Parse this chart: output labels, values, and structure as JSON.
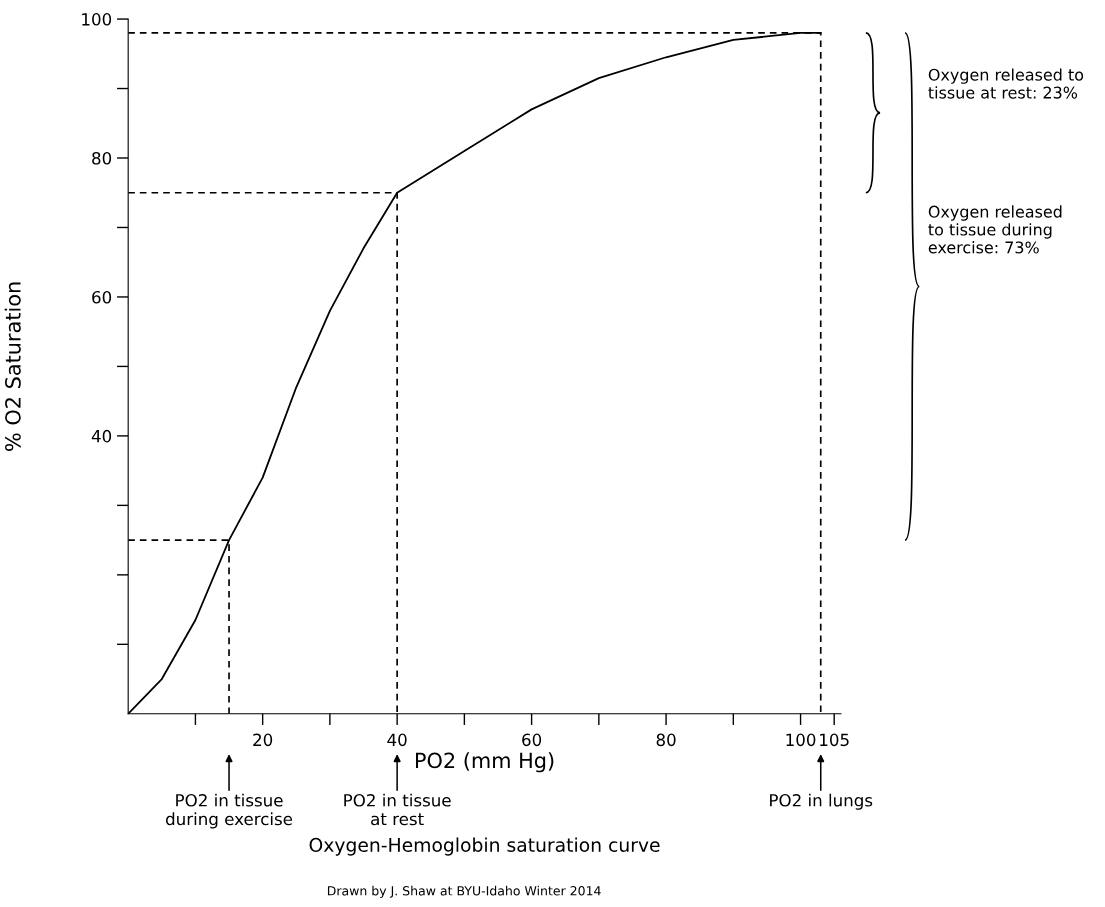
{
  "chart_data": {
    "type": "line",
    "title": "Oxygen-Hemoglobin saturation curve",
    "xlabel": "PO2 (mm Hg)",
    "ylabel": "% O2 Saturation",
    "xlim": [
      0,
      106
    ],
    "ylim": [
      0,
      100
    ],
    "xticks": [
      {
        "value": 10,
        "label": null
      },
      20,
      {
        "value": 30,
        "label": null
      },
      40,
      {
        "value": 50,
        "label": null
      },
      60,
      {
        "value": 70,
        "label": null
      },
      80,
      {
        "value": 90,
        "label": null
      },
      100,
      105
    ],
    "yticks": [
      {
        "value": 10,
        "label": null
      },
      {
        "value": 20,
        "label": null
      },
      {
        "value": 30,
        "label": null
      },
      40,
      {
        "value": 50,
        "label": null
      },
      60,
      {
        "value": 70,
        "label": null
      },
      80,
      {
        "value": 90,
        "label": null
      },
      100
    ],
    "grid": false,
    "legend": false,
    "marker": "none",
    "series": [
      {
        "color": "#000000",
        "line_style": "solid",
        "x": [
          0,
          5,
          10,
          15,
          20,
          25,
          30,
          35,
          40,
          50,
          60,
          70,
          80,
          90,
          100,
          103
        ],
        "values": [
          0,
          5,
          13.5,
          25,
          34,
          47,
          58,
          67,
          75,
          81,
          87,
          91.5,
          94.5,
          97,
          98,
          98
        ]
      },
      {
        "color": "#000000",
        "line_style": "dashed",
        "x": [
          0,
          15,
          15
        ],
        "values": [
          25,
          25,
          0
        ]
      },
      {
        "color": "#000000",
        "line_style": "dashed",
        "x": [
          0,
          40,
          40
        ],
        "values": [
          75,
          75,
          0
        ]
      },
      {
        "color": "#000000",
        "line_style": "dashed",
        "x": [
          0,
          103,
          103
        ],
        "values": [
          98,
          98,
          0
        ]
      }
    ],
    "annotations": [
      "PO2 in tissue\nduring exercise",
      "PO2 in tissue\nat rest",
      "PO2 in lungs",
      "Oxygen released to\ntissue at rest: 23%",
      "Oxygen released\nto tissue during\nexercise: 73%",
      "Drawn by J. Shaw at BYU-Idaho Winter 2014"
    ]
  }
}
